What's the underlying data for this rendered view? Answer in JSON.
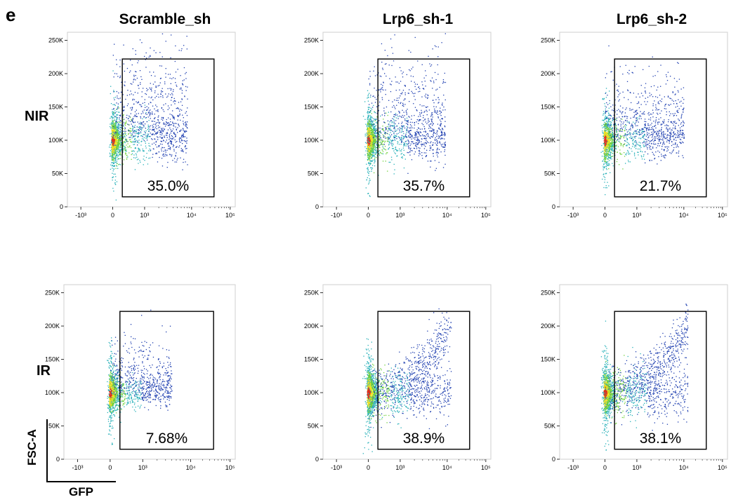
{
  "figure": {
    "panel_letter": "e",
    "columns": [
      "Scramble_sh",
      "Lrp6_sh-1",
      "Lrp6_sh-2"
    ],
    "rows": [
      "NIR",
      "IR"
    ],
    "axis_key": {
      "y": "FSC-A",
      "x": "GFP"
    }
  },
  "colors": {
    "density_low": "#1f3fb0",
    "density_mid": "#26b0b8",
    "density_high_1": "#6fd13a",
    "density_high_2": "#f0e020",
    "density_peak": "#e0301e",
    "gate": "#000000"
  },
  "chart_data": [
    {
      "type": "scatter",
      "subtype": "flow-cytometry-density",
      "title": "Scramble_sh",
      "row": "NIR",
      "xlabel": "GFP",
      "ylabel": "FSC-A",
      "xscale": "biexponential",
      "x_ticks": [
        "-10³",
        "0",
        "10³",
        "10⁴",
        "10⁵"
      ],
      "y_ticks": [
        "0",
        "50K",
        "100K",
        "150K",
        "200K",
        "250K"
      ],
      "ylim": [
        0,
        262144
      ],
      "gate": {
        "x_range": [
          300,
          30000
        ],
        "y_range": [
          15000,
          222000
        ],
        "percent": "35.0%"
      },
      "population": {
        "main_y": 100000,
        "x_max": 8000,
        "spread": 0.9
      }
    },
    {
      "type": "scatter",
      "subtype": "flow-cytometry-density",
      "title": "Lrp6_sh-1",
      "row": "NIR",
      "xlabel": "GFP",
      "ylabel": "FSC-A",
      "xscale": "biexponential",
      "x_ticks": [
        "-10³",
        "0",
        "10³",
        "10⁴",
        "10⁵"
      ],
      "y_ticks": [
        "0",
        "50K",
        "100K",
        "150K",
        "200K",
        "250K"
      ],
      "ylim": [
        0,
        262144
      ],
      "gate": {
        "x_range": [
          300,
          30000
        ],
        "y_range": [
          15000,
          222000
        ],
        "percent": "35.7%"
      },
      "population": {
        "main_y": 100000,
        "x_max": 9000,
        "spread": 0.8
      }
    },
    {
      "type": "scatter",
      "subtype": "flow-cytometry-density",
      "title": "Lrp6_sh-2",
      "row": "NIR",
      "xlabel": "GFP",
      "ylabel": "FSC-A",
      "xscale": "biexponential",
      "x_ticks": [
        "-10³",
        "0",
        "10³",
        "10⁴",
        "10⁵"
      ],
      "y_ticks": [
        "0",
        "50K",
        "100K",
        "150K",
        "200K",
        "250K"
      ],
      "ylim": [
        0,
        262144
      ],
      "gate": {
        "x_range": [
          300,
          30000
        ],
        "y_range": [
          15000,
          222000
        ],
        "percent": "21.7%"
      },
      "population": {
        "main_y": 100000,
        "x_max": 10000,
        "spread": 0.6
      }
    },
    {
      "type": "scatter",
      "subtype": "flow-cytometry-density",
      "title": "Scramble_sh",
      "row": "IR",
      "xlabel": "GFP",
      "ylabel": "FSC-A",
      "xscale": "biexponential",
      "x_ticks": [
        "-10³",
        "0",
        "10³",
        "10⁴",
        "10⁵"
      ],
      "y_ticks": [
        "0",
        "50K",
        "100K",
        "150K",
        "200K",
        "250K"
      ],
      "ylim": [
        0,
        262144
      ],
      "gate": {
        "x_range": [
          300,
          30000
        ],
        "y_range": [
          15000,
          222000
        ],
        "percent": "7.68%"
      },
      "population": {
        "main_y": 100000,
        "x_max": 4000,
        "spread": 0.3
      }
    },
    {
      "type": "scatter",
      "subtype": "flow-cytometry-density",
      "title": "Lrp6_sh-1",
      "row": "IR",
      "xlabel": "GFP",
      "ylabel": "FSC-A",
      "xscale": "biexponential",
      "x_ticks": [
        "-10³",
        "0",
        "10³",
        "10⁴",
        "10⁵"
      ],
      "y_ticks": [
        "0",
        "50K",
        "100K",
        "150K",
        "200K",
        "250K"
      ],
      "ylim": [
        0,
        262144
      ],
      "gate": {
        "x_range": [
          300,
          30000
        ],
        "y_range": [
          15000,
          222000
        ],
        "percent": "38.9%"
      },
      "population": {
        "main_y": 100000,
        "x_max": 12000,
        "spread": 1.0,
        "rising_arm": true
      }
    },
    {
      "type": "scatter",
      "subtype": "flow-cytometry-density",
      "title": "Lrp6_sh-2",
      "row": "IR",
      "xlabel": "GFP",
      "ylabel": "FSC-A",
      "xscale": "biexponential",
      "x_ticks": [
        "-10³",
        "0",
        "10³",
        "10⁴",
        "10⁵"
      ],
      "y_ticks": [
        "0",
        "50K",
        "100K",
        "150K",
        "200K",
        "250K"
      ],
      "ylim": [
        0,
        262144
      ],
      "gate": {
        "x_range": [
          300,
          30000
        ],
        "y_range": [
          15000,
          222000
        ],
        "percent": "38.1%"
      },
      "population": {
        "main_y": 100000,
        "x_max": 12000,
        "spread": 1.0,
        "rising_arm": true
      }
    }
  ]
}
